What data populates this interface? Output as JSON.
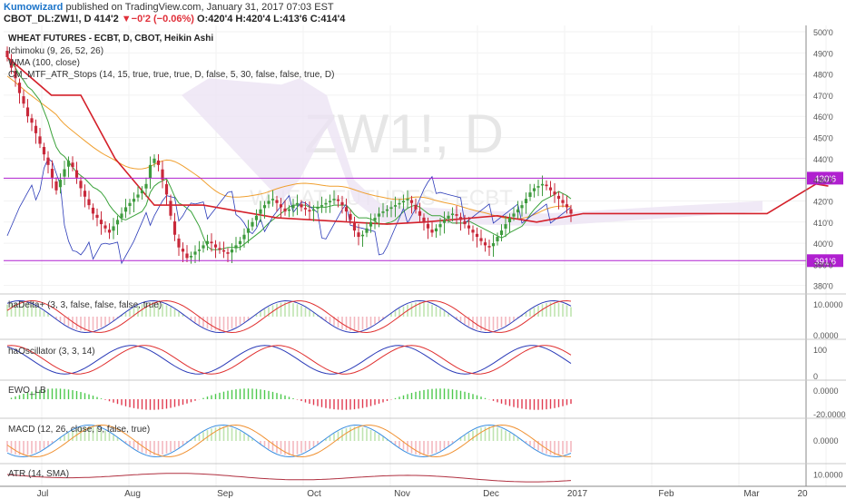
{
  "header": {
    "author": "Kumowizard",
    "published": " published on TradingView.com, January 31, 2017 07:03 EST",
    "symbol": "CBOT_DL:ZW1!, D",
    "last": "414'2",
    "change_arrow": "▼",
    "change": "−0'2 (−0.06%)",
    "open_label": "O:",
    "open": "420'4",
    "high_label": "H:",
    "high": "420'4",
    "low_label": "L:",
    "low": "413'6",
    "close_label": "C:",
    "close": "414'4"
  },
  "watermark": {
    "big": "ZW1!, D",
    "small": "WHEAT FUTURES - ECBT"
  },
  "legend": {
    "title": "WHEAT FUTURES - ECBT, D, CBOT, Heikin Ashi",
    "ichimoku": "Ichimoku (9, 26, 52, 26)",
    "wma": "WMA (100, close)",
    "atr_stops": "CM_MTF_ATR_Stops (14, 15, true, true, true, D, false, 5, 30, false, false, true, D)"
  },
  "x_axis": {
    "labels": [
      "Jul",
      "Aug",
      "Sep",
      "Oct",
      "Nov",
      "Dec",
      "2017",
      "Feb",
      "Mar",
      "20"
    ]
  },
  "colors": {
    "bull": "#3e9b3e",
    "bear": "#c8283a",
    "cloud": "#ece4f4",
    "ichimoku_line": "#3aa23a",
    "wma": "#f0a030",
    "atr_stop": "#d4202a",
    "level": "#b020d0",
    "blue": "#2b3bb8",
    "grid": "#f2f2f2"
  },
  "chart_data": [
    {
      "type": "candlestick",
      "title": "WHEAT FUTURES - ECBT, D, CBOT, Heikin Ashi",
      "y_axis_labels": [
        "500'0",
        "490'0",
        "480'0",
        "470'0",
        "460'0",
        "450'0",
        "440'0",
        "430'0",
        "420'0",
        "410'0",
        "400'0",
        "390'0",
        "380'0"
      ],
      "ylim": [
        376,
        503
      ],
      "price_labels": [
        "430'6",
        "391'6"
      ],
      "levels": [
        430.75,
        391.75
      ],
      "candles_close": [
        488,
        483,
        478,
        471,
        466,
        460,
        457,
        452,
        447,
        442,
        437,
        431,
        425,
        430,
        435,
        439,
        436,
        431,
        426,
        422,
        418,
        414,
        412,
        409,
        407,
        405,
        408,
        411,
        414,
        417,
        419,
        421,
        423,
        425,
        428,
        437,
        440,
        437,
        430,
        423,
        413,
        404,
        398,
        396,
        393,
        394,
        396,
        397,
        399,
        401,
        400,
        398,
        397,
        396,
        395,
        397,
        399,
        401,
        404,
        407,
        410,
        413,
        416,
        418,
        420,
        421,
        419,
        417,
        415,
        416,
        418,
        419,
        417,
        416,
        415,
        416,
        417,
        418,
        419,
        420,
        421,
        420,
        418,
        415,
        411,
        406,
        403,
        404,
        407,
        410,
        412,
        414,
        415,
        416,
        417,
        418,
        419,
        420,
        421,
        419,
        416,
        413,
        410,
        407,
        405,
        407,
        409,
        411,
        413,
        414,
        413,
        411,
        409,
        407,
        405,
        403,
        401,
        399,
        398,
        400,
        403,
        406,
        409,
        412,
        414,
        416,
        418,
        421,
        424,
        426,
        427,
        428,
        427,
        425,
        423,
        421,
        419,
        417,
        414
      ]
    },
    {
      "type": "line",
      "title": "haDelta+ (3, 3, false, false, false, true)",
      "y_axis_labels": [
        "10.0000",
        "0.0000"
      ]
    },
    {
      "type": "line",
      "title": "haOscillator (3, 3, 14)",
      "y_axis_labels": [
        "100",
        "0"
      ]
    },
    {
      "type": "bar",
      "title": "EWO_LB",
      "y_axis_labels": [
        "0.0000",
        "-20.0000"
      ]
    },
    {
      "type": "line",
      "title": "MACD (12, 26, close, 9, false, true)",
      "y_axis_labels": [
        "0.0000"
      ]
    },
    {
      "type": "line",
      "title": "ATR (14, SMA)",
      "y_axis_labels": [
        "10.0000"
      ]
    }
  ]
}
